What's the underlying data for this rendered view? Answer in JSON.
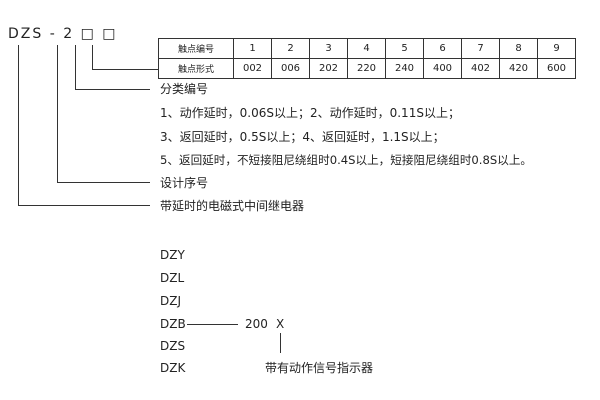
{
  "model_code": "DZS - 2 □ □",
  "contact_table": {
    "row_headers": [
      "触点编号",
      "触点形式"
    ],
    "numbers": [
      "1",
      "2",
      "3",
      "4",
      "5",
      "6",
      "7",
      "8",
      "9"
    ],
    "forms": [
      "002",
      "006",
      "202",
      "220",
      "240",
      "400",
      "402",
      "420",
      "600"
    ]
  },
  "classification": {
    "title": "分类编号",
    "lines": [
      "1、动作延时，0.06S以上；2、动作延时，0.11S以上；",
      "3、返回延时，0.5S以上；4、返回延时，1.1S以上；",
      "5、返回延时，不短接阻尼绕组时0.4S以上，短接阻尼绕组时0.8S以上。"
    ]
  },
  "design_serial": "设计序号",
  "relay_type": "带延时的电磁式中间继电器",
  "series": [
    "DZY",
    "DZL",
    "DZJ",
    "DZB",
    "DZS",
    "DZK"
  ],
  "suffix_code": "200",
  "suffix_x": "X",
  "indicator_note": "带有动作信号指示器"
}
